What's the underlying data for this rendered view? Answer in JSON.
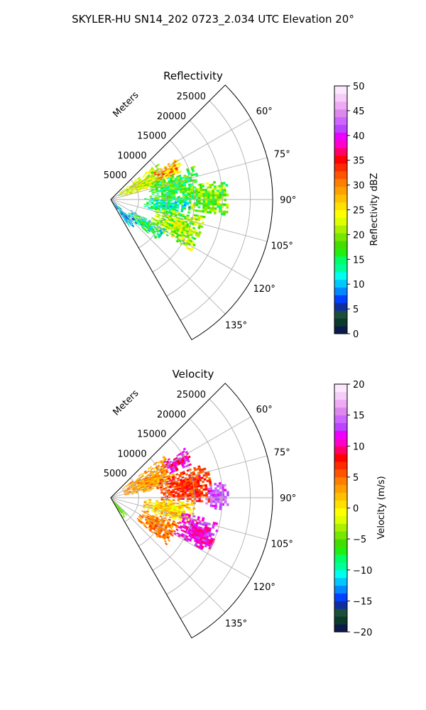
{
  "figure": {
    "suptitle": "SKYLER-HU  SN14_202  0723_2.034 UTC Elevation 20°"
  },
  "chart_data": [
    {
      "type": "heatmap",
      "title": "Reflectivity",
      "projection": "polar sector",
      "radial_label": "Meters",
      "radial_ticks": [
        5000,
        10000,
        15000,
        20000,
        25000
      ],
      "radial_tick_labels": [
        "5000",
        "10000",
        "15000",
        "20000",
        "25000"
      ],
      "rmax": 29000,
      "azimuth_range_deg": [
        45,
        150
      ],
      "azimuth_ticks_deg": [
        60,
        75,
        90,
        105,
        120,
        135
      ],
      "azimuth_tick_labels": [
        "60°",
        "75°",
        "90°",
        "105°",
        "120°",
        "135°"
      ],
      "grid": true,
      "colorbar": {
        "label": "Reflectivity dBZ",
        "vmin": 0,
        "vmax": 50,
        "ticks": [
          0,
          5,
          10,
          15,
          20,
          25,
          30,
          35,
          40,
          45,
          50
        ],
        "tick_labels": [
          "0",
          "5",
          "10",
          "15",
          "20",
          "25",
          "30",
          "35",
          "40",
          "45",
          "50"
        ],
        "colors": [
          "#0b1a4a",
          "#0b3a2a",
          "#1b4f3a",
          "#0f2fa0",
          "#0040ff",
          "#0088ff",
          "#00c8ff",
          "#00ffee",
          "#00ff99",
          "#00ff66",
          "#22ee11",
          "#44dd00",
          "#77e600",
          "#aaf000",
          "#dfff00",
          "#ffff00",
          "#ffe000",
          "#ffc000",
          "#ffa000",
          "#ff8000",
          "#ff5500",
          "#ff2a00",
          "#ff0000",
          "#ff0066",
          "#ff00cc",
          "#ee00ff",
          "#bb44ff",
          "#cc66ff",
          "#dd88ee",
          "#eeaaf5",
          "#f5ccfa",
          "#fbe8fd"
        ]
      },
      "echo_regions": [
        {
          "az": [
            52,
            76
          ],
          "r": [
            1500,
            10500
          ],
          "value_range": [
            18,
            27
          ]
        },
        {
          "az": [
            58,
            70
          ],
          "r": [
            9000,
            14000
          ],
          "value_range": [
            22,
            35
          ]
        },
        {
          "az": [
            68,
            90
          ],
          "r": [
            7000,
            16000
          ],
          "value_range": [
            12,
            22
          ]
        },
        {
          "az": [
            80,
            98
          ],
          "r": [
            14000,
            21000
          ],
          "value_range": [
            14,
            24
          ]
        },
        {
          "az": [
            88,
            104
          ],
          "r": [
            6000,
            14000
          ],
          "value_range": [
            9,
            17
          ]
        },
        {
          "az": [
            100,
            122
          ],
          "r": [
            8000,
            17000
          ],
          "value_range": [
            15,
            26
          ]
        },
        {
          "az": [
            118,
            132
          ],
          "r": [
            4000,
            11000
          ],
          "value_range": [
            8,
            20
          ]
        },
        {
          "az": [
            130,
            146
          ],
          "r": [
            500,
            6000
          ],
          "value_range": [
            5,
            14
          ]
        }
      ]
    },
    {
      "type": "heatmap",
      "title": "Velocity",
      "projection": "polar sector",
      "radial_label": "Meters",
      "radial_ticks": [
        5000,
        10000,
        15000,
        20000,
        25000
      ],
      "radial_tick_labels": [
        "5000",
        "10000",
        "15000",
        "20000",
        "25000"
      ],
      "rmax": 29000,
      "azimuth_range_deg": [
        45,
        150
      ],
      "azimuth_ticks_deg": [
        60,
        75,
        90,
        105,
        120,
        135
      ],
      "azimuth_tick_labels": [
        "60°",
        "75°",
        "90°",
        "105°",
        "120°",
        "135°"
      ],
      "grid": true,
      "colorbar": {
        "label": "Velocity (m/s)",
        "vmin": -20,
        "vmax": 20,
        "ticks": [
          -20,
          -15,
          -10,
          -5,
          0,
          5,
          10,
          15,
          20
        ],
        "tick_labels": [
          "−20",
          "−15",
          "−10",
          "−5",
          "0",
          "5",
          "10",
          "15",
          "20"
        ],
        "colors": [
          "#0b1a4a",
          "#0b3a2a",
          "#1b4f3a",
          "#0f2fa0",
          "#0040ff",
          "#0088ff",
          "#00c8ff",
          "#00ffee",
          "#00ff99",
          "#00ff66",
          "#22ee11",
          "#44dd00",
          "#77e600",
          "#aaf000",
          "#dfff00",
          "#ffff00",
          "#ffe000",
          "#ffc000",
          "#ffa000",
          "#ff8000",
          "#ff5500",
          "#ff2a00",
          "#ff0000",
          "#ff0066",
          "#ff00cc",
          "#ee00ff",
          "#bb44ff",
          "#cc66ff",
          "#dd88ee",
          "#eeaaf5",
          "#f5ccfa",
          "#fbe8fd"
        ]
      },
      "echo_regions": [
        {
          "az": [
            52,
            80
          ],
          "r": [
            2500,
            12000
          ],
          "value_range": [
            1,
            6
          ]
        },
        {
          "az": [
            56,
            68
          ],
          "r": [
            11000,
            16000
          ],
          "value_range": [
            8,
            14
          ]
        },
        {
          "az": [
            70,
            92
          ],
          "r": [
            9000,
            18000
          ],
          "value_range": [
            4,
            9
          ]
        },
        {
          "az": [
            82,
            96
          ],
          "r": [
            17000,
            21000
          ],
          "value_range": [
            12,
            16
          ]
        },
        {
          "az": [
            92,
            108
          ],
          "r": [
            6000,
            15000
          ],
          "value_range": [
            -2,
            4
          ]
        },
        {
          "az": [
            102,
            120
          ],
          "r": [
            13000,
            20000
          ],
          "value_range": [
            9,
            14
          ]
        },
        {
          "az": [
            110,
            130
          ],
          "r": [
            6000,
            13000
          ],
          "value_range": [
            2,
            7
          ]
        },
        {
          "az": [
            134,
            148
          ],
          "r": [
            500,
            4000
          ],
          "value_range": [
            -7,
            -3
          ]
        }
      ]
    }
  ]
}
